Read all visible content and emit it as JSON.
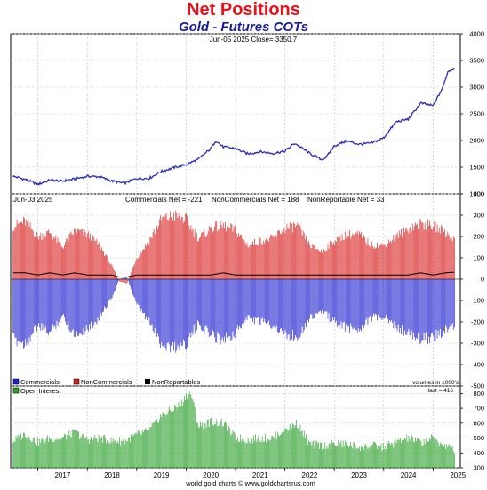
{
  "title": "Net Positions",
  "subtitle": "Gold - Futures COTs",
  "footer": "world gold charts © www.goldchartsrus.com",
  "colors": {
    "title": "#e8121c",
    "subtitle": "#1a1aa0",
    "price_line": "#2a2ab4",
    "commercials": "#2020d0",
    "noncommercials": "#d82020",
    "nonreportables": "#000000",
    "open_interest": "#2aa02a"
  },
  "chart_data": [
    {
      "type": "line",
      "panel": "price",
      "header": "Jun-05  2025   Close= 3350.7",
      "ylim": [
        1000,
        4000
      ],
      "yticks": [
        "1000",
        "1500",
        "2000",
        "2500",
        "3000",
        "3500",
        "4000"
      ],
      "series": [
        {
          "x": [
            2016.5,
            2016.75,
            2017.0,
            2017.25,
            2017.5,
            2017.75,
            2018.0,
            2018.25,
            2018.5,
            2018.75,
            2019.0,
            2019.25,
            2019.5,
            2019.75,
            2020.0,
            2020.25,
            2020.5,
            2020.6,
            2020.75,
            2021.0,
            2021.25,
            2021.5,
            2021.75,
            2022.0,
            2022.2,
            2022.5,
            2022.75,
            2022.85,
            2023.0,
            2023.25,
            2023.5,
            2023.75,
            2024.0,
            2024.25,
            2024.5,
            2024.75,
            2025.0,
            2025.2,
            2025.3,
            2025.43
          ],
          "y": [
            1330,
            1270,
            1180,
            1260,
            1240,
            1280,
            1330,
            1320,
            1240,
            1200,
            1290,
            1290,
            1420,
            1490,
            1550,
            1650,
            1850,
            2000,
            1880,
            1850,
            1750,
            1790,
            1760,
            1800,
            1950,
            1760,
            1640,
            1700,
            1900,
            1990,
            1930,
            1950,
            2050,
            2350,
            2400,
            2700,
            2650,
            3000,
            3300,
            3350
          ]
        }
      ]
    },
    {
      "type": "bar",
      "panel": "net_positions",
      "date_label": "Jun-03  2025",
      "ylim": [
        -500,
        400
      ],
      "yticks": [
        "400",
        "300",
        "200",
        "100",
        "0",
        "-100",
        "-200",
        "-300",
        "-400",
        "-500"
      ],
      "unit_note": "volumes in 1000's",
      "x": [
        2016.5,
        2016.75,
        2017.0,
        2017.25,
        2017.5,
        2017.75,
        2018.0,
        2018.25,
        2018.5,
        2018.65,
        2018.8,
        2019.0,
        2019.25,
        2019.5,
        2019.75,
        2020.0,
        2020.25,
        2020.5,
        2020.75,
        2021.0,
        2021.25,
        2021.5,
        2021.75,
        2022.0,
        2022.25,
        2022.5,
        2022.75,
        2023.0,
        2023.25,
        2023.5,
        2023.75,
        2024.0,
        2024.25,
        2024.5,
        2024.75,
        2025.0,
        2025.25,
        2025.43
      ],
      "series": [
        {
          "name": "Commercials",
          "label": "Commercials Net = -221",
          "values": [
            -280,
            -300,
            -220,
            -250,
            -170,
            -260,
            -230,
            -180,
            -80,
            0,
            10,
            -120,
            -200,
            -300,
            -320,
            -300,
            -210,
            -260,
            -280,
            -250,
            -180,
            -200,
            -210,
            -260,
            -270,
            -180,
            -150,
            -200,
            -230,
            -230,
            -180,
            -180,
            -220,
            -260,
            -280,
            -270,
            -240,
            -221
          ]
        },
        {
          "name": "NonCommercials",
          "label": "NonCommercials Net = 188",
          "values": [
            250,
            270,
            200,
            220,
            150,
            230,
            210,
            160,
            60,
            -10,
            -20,
            100,
            180,
            280,
            300,
            280,
            190,
            240,
            250,
            230,
            160,
            180,
            190,
            240,
            250,
            160,
            130,
            180,
            210,
            210,
            160,
            160,
            200,
            240,
            260,
            250,
            220,
            188
          ]
        },
        {
          "name": "NonReportables",
          "label": "NonReportable Net = 33",
          "values": [
            30,
            30,
            20,
            30,
            20,
            30,
            20,
            20,
            20,
            10,
            10,
            20,
            20,
            20,
            20,
            20,
            20,
            20,
            30,
            20,
            20,
            20,
            20,
            20,
            20,
            20,
            20,
            20,
            20,
            20,
            20,
            20,
            20,
            20,
            30,
            20,
            30,
            33
          ]
        }
      ]
    },
    {
      "type": "bar",
      "panel": "open_interest",
      "series_name": "Open Interest",
      "last_label": "last = 416",
      "ylim": [
        300,
        850
      ],
      "yticks": [
        "300",
        "400",
        "500",
        "600",
        "700",
        "800"
      ],
      "x": [
        2016.5,
        2016.75,
        2017.0,
        2017.25,
        2017.5,
        2017.75,
        2018.0,
        2018.25,
        2018.5,
        2018.75,
        2019.0,
        2019.25,
        2019.5,
        2019.75,
        2019.9,
        2020.0,
        2020.1,
        2020.25,
        2020.5,
        2020.75,
        2021.0,
        2021.25,
        2021.5,
        2021.75,
        2022.0,
        2022.25,
        2022.5,
        2022.75,
        2023.0,
        2023.25,
        2023.5,
        2023.75,
        2024.0,
        2024.25,
        2024.5,
        2024.75,
        2025.0,
        2025.25,
        2025.43
      ],
      "values": [
        480,
        530,
        470,
        500,
        500,
        540,
        490,
        500,
        480,
        480,
        520,
        550,
        650,
        700,
        730,
        790,
        800,
        580,
        610,
        600,
        500,
        490,
        500,
        500,
        560,
        600,
        460,
        450,
        460,
        460,
        440,
        450,
        440,
        470,
        500,
        470,
        500,
        450,
        416
      ]
    }
  ],
  "x_axis": {
    "xlim": [
      2016.45,
      2025.55
    ],
    "years": [
      "2017",
      "2018",
      "2019",
      "2020",
      "2021",
      "2022",
      "2023",
      "2024",
      "2025"
    ]
  },
  "legend": [
    {
      "label": "Commercials",
      "color": "#2020d0"
    },
    {
      "label": "NonCommercials",
      "color": "#d82020"
    },
    {
      "label": "NonReportables",
      "color": "#000000"
    }
  ]
}
